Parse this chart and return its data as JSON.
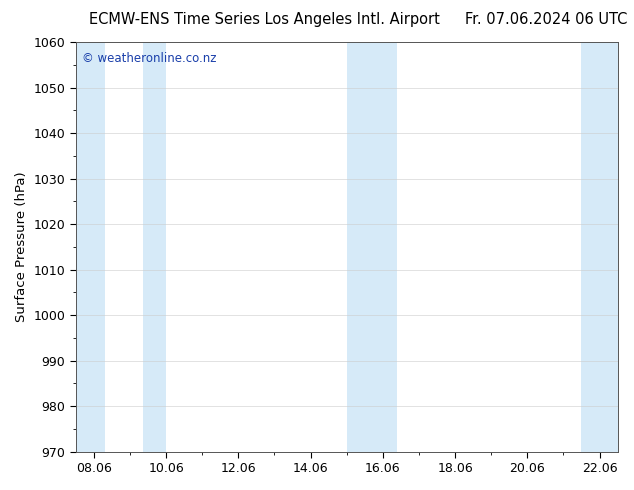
{
  "title_left": "ECMW-ENS Time Series Los Angeles Intl. Airport",
  "title_right": "Fr. 07.06.2024 06 UTC",
  "ylabel": "Surface Pressure (hPa)",
  "ylim": [
    970,
    1060
  ],
  "yticks": [
    970,
    980,
    990,
    1000,
    1010,
    1020,
    1030,
    1040,
    1050,
    1060
  ],
  "xtick_labels": [
    "08.06",
    "10.06",
    "12.06",
    "14.06",
    "16.06",
    "18.06",
    "20.06",
    "22.06"
  ],
  "watermark": "© weatheronline.co.nz",
  "watermark_color": "#1a3faa",
  "background_color": "#ffffff",
  "plot_bg_color": "#ffffff",
  "band_color": "#d6eaf8",
  "bands": [
    {
      "xmin": 0.0,
      "xmax": 0.9
    },
    {
      "xmin": 1.5,
      "xmax": 2.25
    },
    {
      "xmin": 8.0,
      "xmax": 9.5
    },
    {
      "xmin": 14.5,
      "xmax": 15.0
    }
  ],
  "title_fontsize": 10.5,
  "ylabel_fontsize": 9.5,
  "tick_fontsize": 9,
  "grid_color": "#cccccc",
  "spine_color": "#555555"
}
